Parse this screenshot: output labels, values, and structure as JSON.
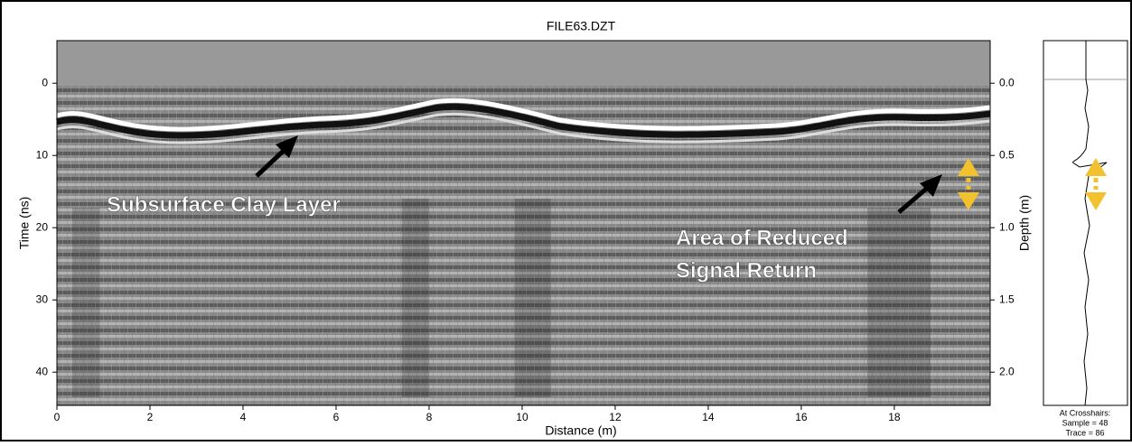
{
  "chart_data": {
    "type": "radargram",
    "title": "FILE63.DZT",
    "xlabel": "Distance (m)",
    "ylabel": "Time (ns)",
    "y2label": "Depth (m)",
    "xlim": [
      0,
      20.06
    ],
    "xticks": [
      0,
      2,
      4,
      6,
      8,
      10,
      12,
      14,
      16,
      18
    ],
    "ylim": [
      -5.9,
      44.6
    ],
    "yticks": [
      0,
      10,
      20,
      30,
      40
    ],
    "inverted": true,
    "y2lim": [
      -0.295,
      2.23
    ],
    "y2ticks": [
      {
        "value": 0,
        "label": "0.0"
      },
      0.5,
      {
        "value": 1,
        "label": "1.0"
      },
      1.5,
      {
        "value": 2,
        "label": "2.0"
      }
    ],
    "annotations": [
      {
        "lines": [
          "Subsurface Clay Layer"
        ]
      },
      {
        "lines": [
          "Area of Reduced",
          "Signal Return"
        ]
      }
    ]
  },
  "side_panel": {
    "lines": [
      "At Crosshairs:",
      "Sample = 48",
      "Trace = 86"
    ]
  }
}
